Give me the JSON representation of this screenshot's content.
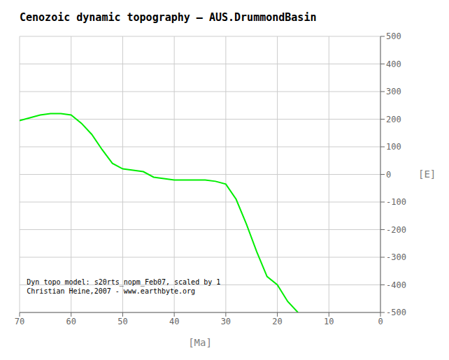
{
  "chart_data": {
    "type": "line",
    "title": "Cenozoic dynamic topography – AUS.DrummondBasin",
    "x_label": "[Ma]",
    "y_label": "[E]",
    "annotation": "Dyn topo model: s20rts_nopm_Feb07, scaled by 1\nChristian Heine,2007 - www.earthbyte.org",
    "x": [
      70,
      68,
      66,
      64,
      62,
      60,
      58,
      56,
      54,
      52,
      50,
      48,
      46,
      44,
      42,
      40,
      38,
      36,
      34,
      32,
      30,
      28,
      26,
      24,
      22,
      20,
      18,
      16
    ],
    "values": [
      195,
      205,
      215,
      220,
      220,
      215,
      185,
      145,
      90,
      40,
      20,
      15,
      10,
      -10,
      -15,
      -20,
      -20,
      -20,
      -20,
      -25,
      -35,
      -90,
      -180,
      -280,
      -370,
      -400,
      -460,
      -500
    ],
    "color": "#00ee00",
    "xlim": [
      70,
      0
    ],
    "ylim": [
      -500,
      500
    ],
    "xticks": [
      70,
      60,
      50,
      40,
      30,
      20,
      10,
      0
    ],
    "yticks": [
      -500,
      -400,
      -300,
      -200,
      -100,
      0,
      100,
      200,
      300,
      400,
      500
    ],
    "grid": true
  }
}
